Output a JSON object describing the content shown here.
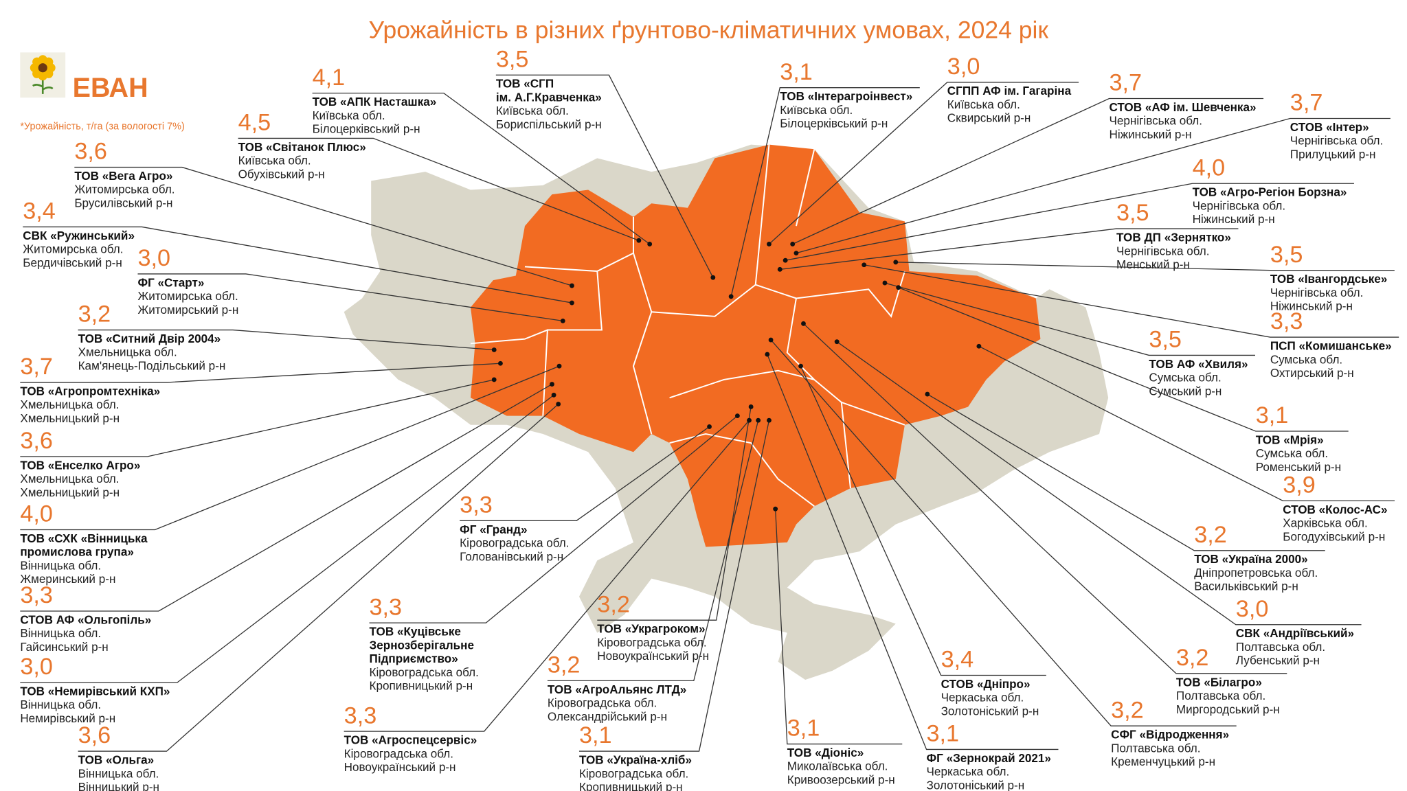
{
  "header": {
    "title": "Урожайність в різних ґрунтово-кліматичних умовах, 2024 рік",
    "logo": "ЕВАН",
    "note": "*Урожайність, т/га (за вологості 7%)"
  },
  "entries": [
    {
      "yield": "3,6",
      "name": [
        "ТОВ «Вега Агро»"
      ],
      "region": "Житомирська обл.",
      "district": "Брусилівський р-н"
    },
    {
      "yield": "3,4",
      "name": [
        "СВК «Ружинський»"
      ],
      "region": "Житомирська обл.",
      "district": "Бердичівський р-н"
    },
    {
      "yield": "3,0",
      "name": [
        "ФГ «Старт»"
      ],
      "region": "Житомирська обл.",
      "district": "Житомирський р-н"
    },
    {
      "yield": "3,2",
      "name": [
        "ТОВ «Ситний Двір 2004»"
      ],
      "region": "Хмельницька обл.",
      "district": "Кам'янець-Подільський р-н"
    },
    {
      "yield": "3,7",
      "name": [
        "ТОВ «Агропромтехніка»"
      ],
      "region": "Хмельницька обл.",
      "district": "Хмельницький р-н"
    },
    {
      "yield": "3,6",
      "name": [
        "ТОВ «Енселко Агро»"
      ],
      "region": "Хмельницька обл.",
      "district": "Хмельницький р-н"
    },
    {
      "yield": "4,0",
      "name": [
        "ТОВ «СХК «Вінницька",
        "промислова група»"
      ],
      "region": "Вінницька обл.",
      "district": "Жмеринський р-н"
    },
    {
      "yield": "3,3",
      "name": [
        "СТОВ АФ «Ольгопіль»"
      ],
      "region": "Вінницька обл.",
      "district": "Гайсинський р-н"
    },
    {
      "yield": "3,0",
      "name": [
        "ТОВ «Немирівський КХП»"
      ],
      "region": "Вінницька обл.",
      "district": "Немирівський р-н"
    },
    {
      "yield": "3,6",
      "name": [
        "ТОВ «Ольга»"
      ],
      "region": "Вінницька обл.",
      "district": "Вінницький р-н"
    },
    {
      "yield": "4,5",
      "name": [
        "ТОВ «Світанок Плюс»"
      ],
      "region": "Київська обл.",
      "district": "Обухівський р-н"
    },
    {
      "yield": "4,1",
      "name": [
        "ТОВ «АПК Насташка»"
      ],
      "region": "Київська обл.",
      "district": "Білоцерківський р-н"
    },
    {
      "yield": "3,5",
      "name": [
        "ТОВ «СГП",
        "ім. А.Г.Кравченка»"
      ],
      "region": "Київська обл.",
      "district": "Бориспільський р-н"
    },
    {
      "yield": "3,1",
      "name": [
        "ТОВ «Інтерагроінвест»"
      ],
      "region": "Київська обл.",
      "district": "Білоцерківський р-н"
    },
    {
      "yield": "3,0",
      "name": [
        "СГПП АФ ім. Гагаріна"
      ],
      "region": "Київська обл.",
      "district": "Сквирський р-н"
    },
    {
      "yield": "3,7",
      "name": [
        "СТОВ «АФ ім. Шевченка»"
      ],
      "region": "Чернігівська обл.",
      "district": "Ніжинський р-н"
    },
    {
      "yield": "3,7",
      "name": [
        "СТОВ «Інтер»"
      ],
      "region": "Чернігівська обл.",
      "district": "Прилуцький р-н"
    },
    {
      "yield": "4,0",
      "name": [
        "ТОВ «Агро-Регіон Борзна»"
      ],
      "region": "Чернігівська обл.",
      "district": "Ніжинський р-н"
    },
    {
      "yield": "3,5",
      "name": [
        "ТОВ ДП «Зернятко»"
      ],
      "region": "Чернігівська обл.",
      "district": "Менський р-н"
    },
    {
      "yield": "3,5",
      "name": [
        "ТОВ «Івангордське»"
      ],
      "region": "Чернігівська обл.",
      "district": "Ніжинський р-н"
    },
    {
      "yield": "3,3",
      "name": [
        "ПСП «Комишанське»"
      ],
      "region": "Сумська обл.",
      "district": "Охтирський р-н"
    },
    {
      "yield": "3,5",
      "name": [
        "ТОВ АФ «Хвиля»"
      ],
      "region": "Сумська обл.",
      "district": "Сумський р-н"
    },
    {
      "yield": "3,1",
      "name": [
        "ТОВ «Мрія»"
      ],
      "region": "Сумська обл.",
      "district": "Роменський р-н"
    },
    {
      "yield": "3,9",
      "name": [
        "СТОВ «Колос-АС»"
      ],
      "region": "Харківська обл.",
      "district": "Богодухівський р-н"
    },
    {
      "yield": "3,2",
      "name": [
        "ТОВ «Україна 2000»"
      ],
      "region": "Дніпропетровська обл.",
      "district": "Васильківський р-н"
    },
    {
      "yield": "3,0",
      "name": [
        "СВК «Андріївський»"
      ],
      "region": "Полтавська обл.",
      "district": "Лубенський р-н"
    },
    {
      "yield": "3,2",
      "name": [
        "ТОВ «Білагро»"
      ],
      "region": "Полтавська обл.",
      "district": "Миргородський р-н"
    },
    {
      "yield": "3,2",
      "name": [
        "СФГ «Відродження»"
      ],
      "region": "Полтавська обл.",
      "district": "Кременчуцький р-н"
    },
    {
      "yield": "3,1",
      "name": [
        "ФГ «Зернокрай 2021»"
      ],
      "region": "Черкаська обл.",
      "district": "Золотоніський р-н"
    },
    {
      "yield": "3,4",
      "name": [
        "СТОВ «Дніпро»"
      ],
      "region": "Черкаська обл.",
      "district": "Золотоніський р-н"
    },
    {
      "yield": "3,1",
      "name": [
        "ТОВ «Діоніс»"
      ],
      "region": "Миколаївська обл.",
      "district": "Кривоозерський р-н"
    },
    {
      "yield": "3,3",
      "name": [
        "ФГ «Гранд»"
      ],
      "region": "Кіровоградська обл.",
      "district": "Голованівський р-н"
    },
    {
      "yield": "3,3",
      "name": [
        "ТОВ «Куцівське",
        "Зернозберігальне",
        "Підприємство»"
      ],
      "region": "Кіровоградська обл.",
      "district": "Кропивницький р-н"
    },
    {
      "yield": "3,2",
      "name": [
        "ТОВ «Украгроком»"
      ],
      "region": "Кіровоградська обл.",
      "district": "Новоукраїнський р-н"
    },
    {
      "yield": "3,2",
      "name": [
        "ТОВ «АгроАльянс ЛТД»"
      ],
      "region": "Кіровоградська обл.",
      "district": "Олександрійський р-н"
    },
    {
      "yield": "3,3",
      "name": [
        "ТОВ «Агроспецсервіс»"
      ],
      "region": "Кіровоградська обл.",
      "district": "Новоукраїнський р-н"
    },
    {
      "yield": "3,1",
      "name": [
        "ТОВ «Україна-хліб»"
      ],
      "region": "Кіровоградська обл.",
      "district": "Кропивницький р-н"
    }
  ]
}
